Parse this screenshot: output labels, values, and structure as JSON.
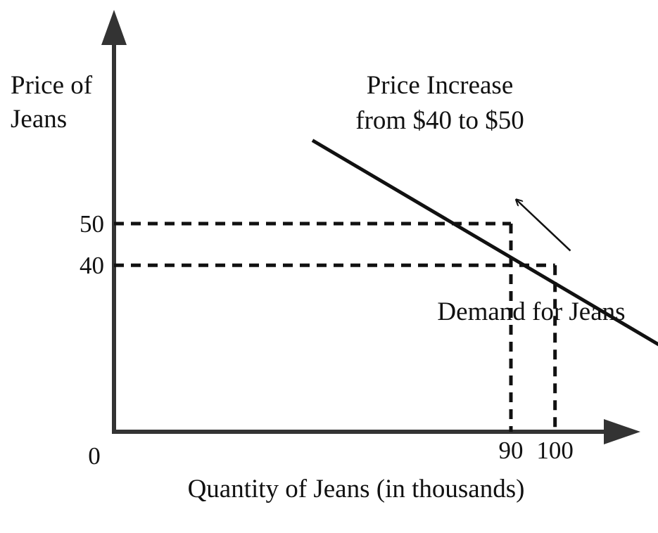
{
  "chart_data": {
    "type": "line",
    "title": "Price Increase from $40 to $50",
    "ylabel": "Price of Jeans",
    "xlabel": "Quantity of Jeans (in thousands)",
    "origin_label": "0",
    "series": [
      {
        "name": "Demand for Jeans",
        "x": [
          45,
          125
        ],
        "y": [
          70,
          20
        ]
      }
    ],
    "reference_points": [
      {
        "x": 90,
        "y": 50,
        "x_label": "90",
        "y_label": "50"
      },
      {
        "x": 100,
        "y": 40,
        "x_label": "100",
        "y_label": "40"
      }
    ],
    "movement": {
      "from": {
        "x": 100,
        "y": 40
      },
      "to": {
        "x": 90,
        "y": 50
      }
    },
    "xlim": [
      0,
      150
    ],
    "ylim": [
      0,
      100
    ],
    "grid": false,
    "colors": {
      "ink": "#111111",
      "axis": "#333333"
    }
  }
}
